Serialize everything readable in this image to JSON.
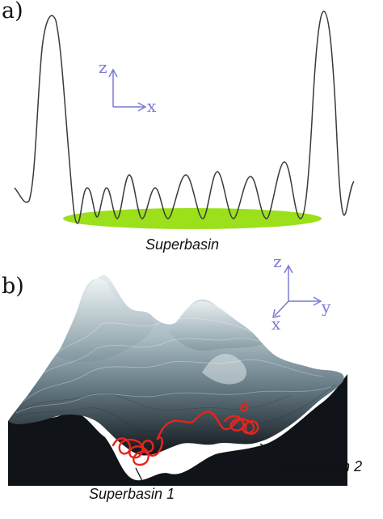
{
  "panel_a": {
    "letter": "a)",
    "axis_vertical": "z",
    "axis_horizontal": "x",
    "superbasin_label": "Superbasin"
  },
  "panel_b": {
    "letter": "b)",
    "axis_vertical": "z",
    "axis_depth": "x",
    "axis_horizontal": "y",
    "superbasin_1_label": "Superbasin 1",
    "superbasin_2_label": "Superbasin 2"
  },
  "colors": {
    "curve": "#3a3a3a",
    "superbasin_fill": "#9be01a",
    "axes": "#7a7ad6",
    "trajectory": "#e8231b",
    "surface_light": "#dfe7ea",
    "surface_dark": "#101418"
  }
}
